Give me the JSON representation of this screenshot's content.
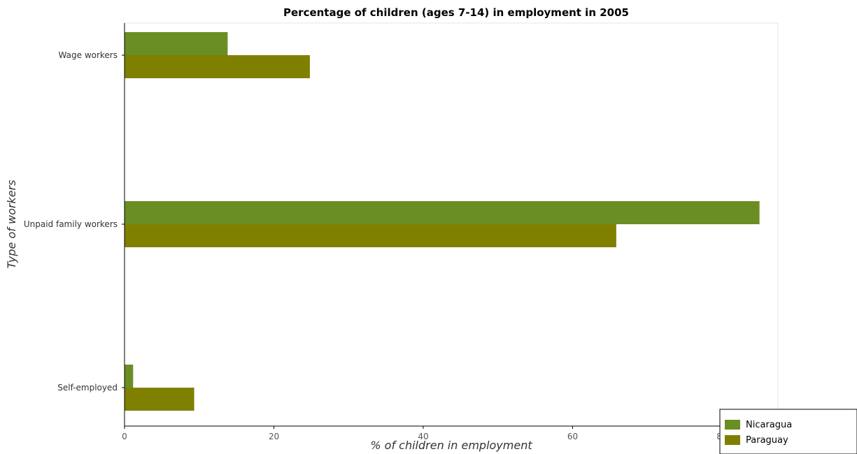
{
  "chart_data": {
    "type": "bar",
    "orientation": "horizontal",
    "title": "Percentage of children (ages 7-14) in employment in 2005",
    "xlabel": "% of children in employment",
    "ylabel": "Type of workers",
    "categories": [
      "Self-employed",
      "Unpaid family workers",
      "Wage workers"
    ],
    "series": [
      {
        "name": "Nicaragua",
        "color": "#6b8e23",
        "values": [
          1.15,
          85.03,
          13.81
        ]
      },
      {
        "name": "Paraguay",
        "color": "#808000",
        "values": [
          9.33,
          65.85,
          24.82
        ]
      }
    ],
    "xlim": [
      0,
      87.5
    ],
    "xticks": [
      0,
      20,
      40,
      60,
      80
    ],
    "legend_position": "bottom-right",
    "grid": false
  }
}
